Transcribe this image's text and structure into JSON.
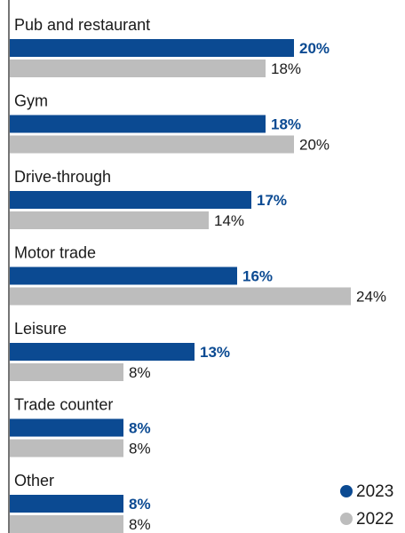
{
  "chart_data": {
    "type": "bar",
    "orientation": "horizontal",
    "title": "",
    "xlabel": "",
    "ylabel": "",
    "xlim": [
      0,
      25
    ],
    "grid": false,
    "legend_position": "bottom-right",
    "value_format": "percent",
    "categories": [
      "Pub and restaurant",
      "Gym",
      "Drive-through",
      "Motor trade",
      "Leisure",
      "Trade counter",
      "Other"
    ],
    "series": [
      {
        "name": "2023",
        "color": "#0b4a92",
        "values": [
          20,
          18,
          17,
          16,
          13,
          8,
          8
        ]
      },
      {
        "name": "2022",
        "color": "#bdbdbd",
        "values": [
          18,
          20,
          14,
          24,
          8,
          8,
          8
        ]
      }
    ]
  }
}
